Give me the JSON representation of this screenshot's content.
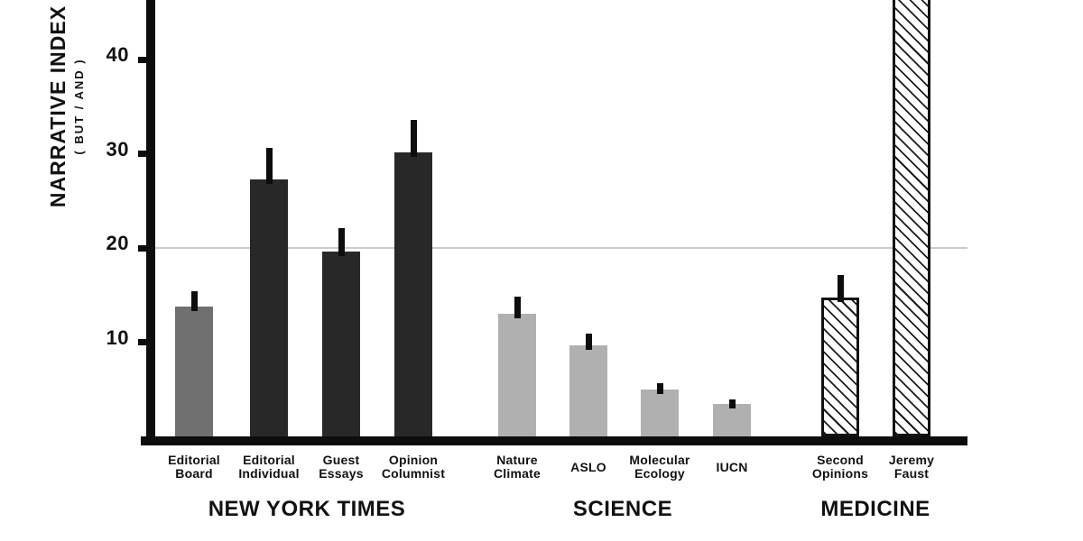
{
  "chart_data": {
    "type": "bar",
    "title": "",
    "ylabel": "NARRATIVE INDEX",
    "ylabel_sub": "( BUT / AND )",
    "yticks": [
      40,
      30,
      20,
      10
    ],
    "ylim": [
      0,
      46
    ],
    "gridline_at": 20,
    "legend_position": "none",
    "grid": "single reference line at y=20",
    "groups": [
      {
        "label": "NEW YORK TIMES",
        "bars": [
          {
            "label": "Editorial Board",
            "label_lines": [
              "Editorial",
              "Board"
            ],
            "value": 13.8,
            "error_top": 15.4,
            "style": "darkgray",
            "offscale": false
          },
          {
            "label": "Editorial Individual",
            "label_lines": [
              "Editorial",
              "Individual"
            ],
            "value": 27.3,
            "error_top": 30.6,
            "style": "black",
            "offscale": false
          },
          {
            "label": "Guest Essays",
            "label_lines": [
              "Guest",
              "Essays"
            ],
            "value": 19.6,
            "error_top": 22.1,
            "style": "black",
            "offscale": false
          },
          {
            "label": "Opinion Columnist",
            "label_lines": [
              "Opinion",
              "Columnist"
            ],
            "value": 30.1,
            "error_top": 33.6,
            "style": "black",
            "offscale": false
          }
        ]
      },
      {
        "label": "SCIENCE",
        "bars": [
          {
            "label": "Nature Climate",
            "label_lines": [
              "Nature",
              "Climate"
            ],
            "value": 13.0,
            "error_top": 14.8,
            "style": "lightgray",
            "offscale": false
          },
          {
            "label": "ASLO",
            "label_lines": [
              "ASLO"
            ],
            "value": 9.7,
            "error_top": 10.9,
            "style": "lightgray",
            "offscale": false
          },
          {
            "label": "Molecular Ecology",
            "label_lines": [
              "Molecular",
              "Ecology"
            ],
            "value": 5.0,
            "error_top": 5.6,
            "style": "lightgray",
            "offscale": false
          },
          {
            "label": "IUCN",
            "label_lines": [
              "IUCN"
            ],
            "value": 3.4,
            "error_top": 3.9,
            "style": "lightgray",
            "offscale": false
          }
        ]
      },
      {
        "label": "MEDICINE",
        "bars": [
          {
            "label": "Second Opinions",
            "label_lines": [
              "Second",
              "Opinions"
            ],
            "value": 14.7,
            "error_top": 17.1,
            "style": "hatched",
            "offscale": false
          },
          {
            "label": "Jeremy Faust",
            "label_lines": [
              "Jeremy",
              "Faust"
            ],
            "value": null,
            "error_top": null,
            "style": "hatched",
            "offscale": true
          }
        ]
      }
    ],
    "colors": {
      "black_bar": "#282828",
      "dark_gray_bar": "#707070",
      "light_gray_bar": "#b0b0b0",
      "hatched_bar_line": "#1c1c1c",
      "axis": "#0d0d0d",
      "gridline": "#cbcbcb",
      "text": "#111111",
      "background": "#ffffff"
    }
  }
}
